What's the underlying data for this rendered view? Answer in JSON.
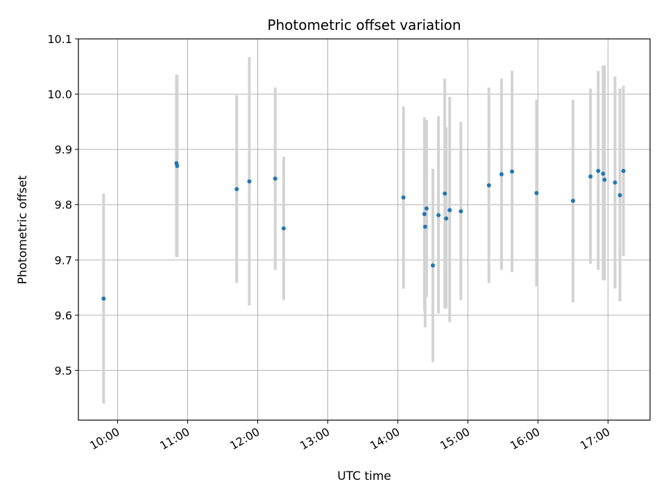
{
  "chart_data": {
    "type": "scatter",
    "title": "Photometric offset variation",
    "xlabel": "UTC time",
    "ylabel": "Photometric offset",
    "xlim_hours": [
      9.44,
      17.6
    ],
    "ylim": [
      9.41,
      10.1
    ],
    "grid": true,
    "x_ticks": [
      {
        "hour": 10,
        "label": "10:00"
      },
      {
        "hour": 11,
        "label": "11:00"
      },
      {
        "hour": 12,
        "label": "12:00"
      },
      {
        "hour": 13,
        "label": "13:00"
      },
      {
        "hour": 14,
        "label": "14:00"
      },
      {
        "hour": 15,
        "label": "15:00"
      },
      {
        "hour": 16,
        "label": "16:00"
      },
      {
        "hour": 17,
        "label": "17:00"
      }
    ],
    "y_ticks": [
      {
        "value": 9.5,
        "label": "9.5"
      },
      {
        "value": 9.6,
        "label": "9.6"
      },
      {
        "value": 9.7,
        "label": "9.7"
      },
      {
        "value": 9.8,
        "label": "9.8"
      },
      {
        "value": 9.9,
        "label": "9.9"
      },
      {
        "value": 10.0,
        "label": "10.0"
      },
      {
        "value": 10.1,
        "label": "10.1"
      }
    ],
    "point_color": "#1f77b4",
    "errorbar_color": "#d3d3d3",
    "points": [
      {
        "time": "09:48",
        "hour": 9.8,
        "y": 9.63,
        "ylow": 9.44,
        "yhigh": 9.82
      },
      {
        "time": "10:50",
        "hour": 10.84,
        "y": 9.875,
        "ylow": 9.705,
        "yhigh": 10.035
      },
      {
        "time": "10:51",
        "hour": 10.85,
        "y": 9.87,
        "ylow": 9.705,
        "yhigh": 10.035
      },
      {
        "time": "11:42",
        "hour": 11.7,
        "y": 9.828,
        "ylow": 9.658,
        "yhigh": 9.998
      },
      {
        "time": "11:53",
        "hour": 11.88,
        "y": 9.842,
        "ylow": 9.617,
        "yhigh": 10.067
      },
      {
        "time": "12:15",
        "hour": 12.25,
        "y": 9.847,
        "ylow": 9.682,
        "yhigh": 10.012
      },
      {
        "time": "12:22",
        "hour": 12.37,
        "y": 9.757,
        "ylow": 9.627,
        "yhigh": 9.887
      },
      {
        "time": "14:05",
        "hour": 14.08,
        "y": 9.813,
        "ylow": 9.648,
        "yhigh": 9.978
      },
      {
        "time": "14:23",
        "hour": 14.38,
        "y": 9.783,
        "ylow": 9.608,
        "yhigh": 9.958
      },
      {
        "time": "14:24",
        "hour": 14.39,
        "y": 9.76,
        "ylow": 9.578,
        "yhigh": 9.95
      },
      {
        "time": "14:25",
        "hour": 14.41,
        "y": 9.793,
        "ylow": 9.633,
        "yhigh": 9.953
      },
      {
        "time": "14:30",
        "hour": 14.5,
        "y": 9.69,
        "ylow": 9.515,
        "yhigh": 9.865
      },
      {
        "time": "14:35",
        "hour": 14.58,
        "y": 9.781,
        "ylow": 9.603,
        "yhigh": 9.96
      },
      {
        "time": "14:40",
        "hour": 14.67,
        "y": 9.82,
        "ylow": 9.612,
        "yhigh": 10.028
      },
      {
        "time": "14:41",
        "hour": 14.69,
        "y": 9.775,
        "ylow": 9.612,
        "yhigh": 9.94
      },
      {
        "time": "14:44",
        "hour": 14.74,
        "y": 9.79,
        "ylow": 9.587,
        "yhigh": 9.995
      },
      {
        "time": "14:54",
        "hour": 14.9,
        "y": 9.788,
        "ylow": 9.627,
        "yhigh": 9.95
      },
      {
        "time": "15:18",
        "hour": 15.3,
        "y": 9.835,
        "ylow": 9.658,
        "yhigh": 10.012
      },
      {
        "time": "15:29",
        "hour": 15.48,
        "y": 9.855,
        "ylow": 9.682,
        "yhigh": 10.028
      },
      {
        "time": "15:38",
        "hour": 15.63,
        "y": 9.86,
        "ylow": 9.678,
        "yhigh": 10.042
      },
      {
        "time": "15:59",
        "hour": 15.98,
        "y": 9.821,
        "ylow": 9.652,
        "yhigh": 9.99
      },
      {
        "time": "16:30",
        "hour": 16.5,
        "y": 9.807,
        "ylow": 9.623,
        "yhigh": 9.99
      },
      {
        "time": "16:45",
        "hour": 16.75,
        "y": 9.851,
        "ylow": 9.693,
        "yhigh": 10.01
      },
      {
        "time": "16:51",
        "hour": 16.86,
        "y": 9.861,
        "ylow": 9.682,
        "yhigh": 10.042
      },
      {
        "time": "16:56",
        "hour": 16.93,
        "y": 9.856,
        "ylow": 9.663,
        "yhigh": 10.052
      },
      {
        "time": "16:57",
        "hour": 16.95,
        "y": 9.845,
        "ylow": 9.663,
        "yhigh": 10.052
      },
      {
        "time": "17:06",
        "hour": 17.1,
        "y": 9.84,
        "ylow": 9.648,
        "yhigh": 10.032
      },
      {
        "time": "17:10",
        "hour": 17.17,
        "y": 9.817,
        "ylow": 9.625,
        "yhigh": 10.01
      },
      {
        "time": "17:13",
        "hour": 17.22,
        "y": 9.861,
        "ylow": 9.707,
        "yhigh": 10.015
      }
    ]
  }
}
